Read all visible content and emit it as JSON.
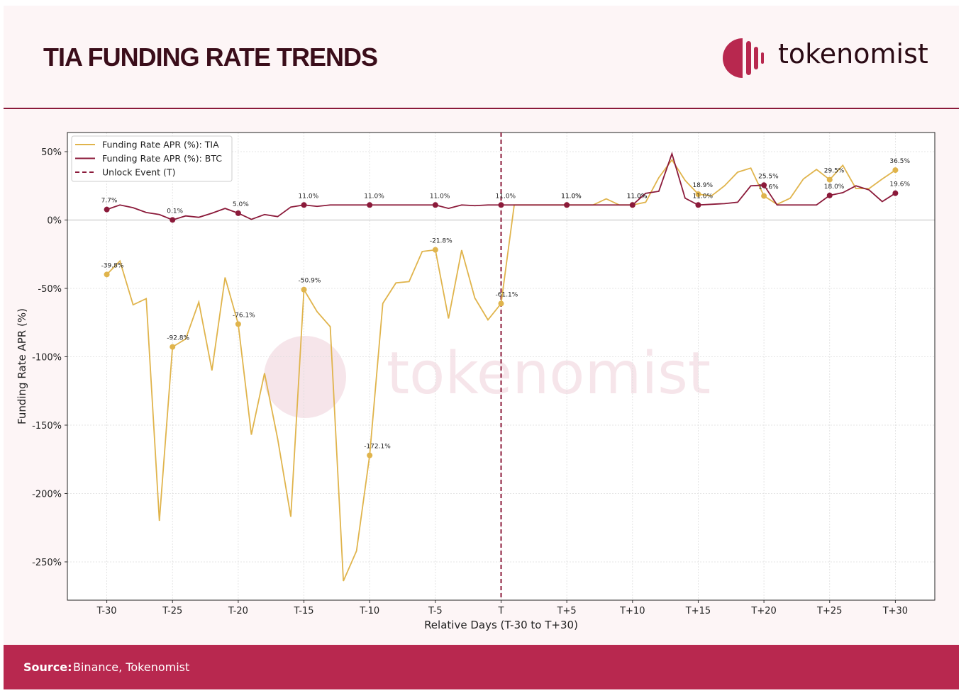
{
  "header": {
    "title": "TIA FUNDING RATE TRENDS",
    "logo_text": "tokenomist"
  },
  "footer": {
    "source_label": "Source:",
    "source_text": "Binance, Tokenomist"
  },
  "chart_data": {
    "type": "line",
    "watermark": "tokenomist",
    "xlabel": "Relative Days (T-30 to T+30)",
    "ylabel": "Funding Rate APR (%)",
    "x": [
      -30,
      -29,
      -28,
      -27,
      -26,
      -25,
      -24,
      -23,
      -22,
      -21,
      -20,
      -19,
      -18,
      -17,
      -16,
      -15,
      -14,
      -13,
      -12,
      -11,
      -10,
      -9,
      -8,
      -7,
      -6,
      -5,
      -4,
      -3,
      -2,
      -1,
      0,
      1,
      2,
      3,
      4,
      5,
      6,
      7,
      8,
      9,
      10,
      11,
      12,
      13,
      14,
      15,
      16,
      17,
      18,
      19,
      20,
      21,
      22,
      23,
      24,
      25,
      26,
      27,
      28,
      29,
      30
    ],
    "series": [
      {
        "name": "Funding Rate APR (%): TIA",
        "color": "#e0b44c",
        "values": [
          -39.8,
          -30,
          -62,
          -57.5,
          -220,
          -92.8,
          -87,
          -60,
          -110,
          -42,
          -76.1,
          -157,
          -112,
          -160,
          -217,
          -50.9,
          -67,
          -78,
          -264,
          -242,
          -172.1,
          -61,
          -46,
          -45,
          -23,
          -21.8,
          -72,
          -22,
          -57,
          -73,
          -61.1,
          11,
          11,
          11,
          11,
          11.0,
          11,
          11,
          15.5,
          11,
          11.0,
          13,
          31,
          44,
          29,
          18.9,
          17.6,
          25,
          35,
          38,
          17.6,
          11.5,
          16,
          30,
          37,
          29.5,
          40,
          23,
          23,
          30,
          36.5
        ],
        "value_labels": [
          "-39.8%",
          null,
          null,
          null,
          null,
          "-92.8%",
          null,
          null,
          null,
          null,
          "-76.1%",
          null,
          null,
          null,
          null,
          "-50.9%",
          null,
          null,
          null,
          null,
          "-172.1%",
          null,
          null,
          null,
          null,
          "-21.8%",
          null,
          null,
          null,
          null,
          "-61.1%",
          null,
          null,
          null,
          null,
          "11.0%",
          null,
          null,
          null,
          null,
          "11.0%",
          null,
          null,
          null,
          null,
          "18.9%",
          null,
          null,
          null,
          null,
          "17.6%",
          null,
          null,
          null,
          null,
          "29.5%",
          null,
          null,
          null,
          null,
          "36.5%"
        ]
      },
      {
        "name": "Funding Rate APR (%): BTC",
        "color": "#8b1a3a",
        "values": [
          7.7,
          11,
          9,
          5.5,
          4,
          0.1,
          3,
          2,
          5,
          8.5,
          5.0,
          0.5,
          4,
          2.5,
          9.5,
          11.0,
          10,
          11,
          11,
          11,
          11.0,
          11,
          11,
          11,
          11,
          11.0,
          8.5,
          11,
          10.5,
          11,
          11.0,
          11,
          11,
          11,
          11,
          11.0,
          11,
          11,
          11,
          11,
          11.0,
          19.5,
          21,
          48.5,
          16,
          11.0,
          11.5,
          12,
          13,
          25,
          25.5,
          11,
          11,
          11,
          11,
          18.0,
          20,
          25,
          22,
          13.5,
          19.6
        ],
        "value_labels": [
          "7.7%",
          null,
          null,
          null,
          null,
          "0.1%",
          null,
          null,
          null,
          null,
          "5.0%",
          null,
          null,
          null,
          null,
          "11.0%",
          null,
          null,
          null,
          null,
          "11.0%",
          null,
          null,
          null,
          null,
          "11.0%",
          null,
          null,
          null,
          null,
          "11.0%",
          null,
          null,
          null,
          null,
          "11.0%",
          null,
          null,
          null,
          null,
          "11.0%",
          null,
          null,
          null,
          null,
          "11.0%",
          null,
          null,
          null,
          null,
          "25.5%",
          null,
          null,
          null,
          null,
          "18.0%",
          null,
          null,
          null,
          null,
          "19.6%"
        ]
      }
    ],
    "event_line": {
      "x": 0,
      "name": "Unlock Event (T)",
      "color": "#8b1a3a"
    },
    "xlim": [
      -33,
      33
    ],
    "ylim": [
      -278,
      64
    ],
    "xticks": [
      {
        "value": -30,
        "label": "T-30"
      },
      {
        "value": -25,
        "label": "T-25"
      },
      {
        "value": -20,
        "label": "T-20"
      },
      {
        "value": -15,
        "label": "T-15"
      },
      {
        "value": -10,
        "label": "T-10"
      },
      {
        "value": -5,
        "label": "T-5"
      },
      {
        "value": 0,
        "label": "T"
      },
      {
        "value": 5,
        "label": "T+5"
      },
      {
        "value": 10,
        "label": "T+10"
      },
      {
        "value": 15,
        "label": "T+15"
      },
      {
        "value": 20,
        "label": "T+20"
      },
      {
        "value": 25,
        "label": "T+25"
      },
      {
        "value": 30,
        "label": "T+30"
      }
    ],
    "yticks": [
      {
        "value": 50,
        "label": "50%"
      },
      {
        "value": 0,
        "label": "0%"
      },
      {
        "value": -50,
        "label": "-50%"
      },
      {
        "value": -100,
        "label": "-100%"
      },
      {
        "value": -150,
        "label": "-150%"
      },
      {
        "value": -200,
        "label": "-200%"
      },
      {
        "value": -250,
        "label": "-250%"
      }
    ],
    "grid": true,
    "legend": "upper left"
  }
}
